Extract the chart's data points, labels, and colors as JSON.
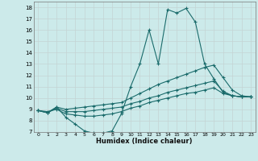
{
  "xlabel": "Humidex (Indice chaleur)",
  "ylabel": "",
  "bg_color": "#cceaea",
  "grid_color": "#aad4d4",
  "line_color": "#1a6b6b",
  "xlim": [
    -0.5,
    23.5
  ],
  "ylim": [
    7,
    18.5
  ],
  "xticks": [
    0,
    1,
    2,
    3,
    4,
    5,
    6,
    7,
    8,
    9,
    10,
    11,
    12,
    13,
    14,
    15,
    16,
    17,
    18,
    19,
    20,
    21,
    22,
    23
  ],
  "yticks": [
    7,
    8,
    9,
    10,
    11,
    12,
    13,
    14,
    15,
    16,
    17,
    18
  ],
  "line1_x": [
    0,
    1,
    2,
    3,
    4,
    5,
    6,
    7,
    8,
    9,
    10,
    11,
    12,
    13,
    14,
    15,
    16,
    17,
    18,
    19,
    20,
    21,
    22,
    23
  ],
  "line1_y": [
    8.9,
    8.7,
    9.2,
    8.3,
    7.7,
    7.1,
    6.9,
    6.9,
    7.1,
    8.6,
    11.0,
    13.0,
    16.0,
    13.0,
    17.8,
    17.5,
    17.9,
    16.7,
    13.0,
    11.7,
    10.5,
    10.2,
    10.1,
    10.1
  ],
  "line2_x": [
    0,
    1,
    2,
    3,
    4,
    5,
    6,
    7,
    8,
    9,
    10,
    11,
    12,
    13,
    14,
    15,
    16,
    17,
    18,
    19,
    20,
    21,
    22,
    23
  ],
  "line2_y": [
    8.9,
    8.7,
    9.2,
    9.0,
    9.1,
    9.2,
    9.3,
    9.4,
    9.5,
    9.6,
    10.0,
    10.4,
    10.8,
    11.2,
    11.5,
    11.8,
    12.1,
    12.4,
    12.7,
    12.9,
    11.8,
    10.7,
    10.2,
    10.1
  ],
  "line3_x": [
    0,
    1,
    2,
    3,
    4,
    5,
    6,
    7,
    8,
    9,
    10,
    11,
    12,
    13,
    14,
    15,
    16,
    17,
    18,
    19,
    20,
    21,
    22,
    23
  ],
  "line3_y": [
    8.9,
    8.7,
    9.1,
    8.8,
    8.8,
    8.8,
    8.9,
    9.0,
    9.1,
    9.2,
    9.5,
    9.7,
    10.0,
    10.2,
    10.5,
    10.7,
    10.9,
    11.1,
    11.3,
    11.5,
    10.6,
    10.2,
    10.1,
    10.1
  ],
  "line4_x": [
    0,
    1,
    2,
    3,
    4,
    5,
    6,
    7,
    8,
    9,
    10,
    11,
    12,
    13,
    14,
    15,
    16,
    17,
    18,
    19,
    20,
    21,
    22,
    23
  ],
  "line4_y": [
    8.9,
    8.8,
    9.0,
    8.6,
    8.5,
    8.4,
    8.4,
    8.5,
    8.6,
    8.8,
    9.1,
    9.3,
    9.6,
    9.8,
    10.0,
    10.2,
    10.4,
    10.5,
    10.7,
    10.9,
    10.4,
    10.2,
    10.1,
    10.1
  ]
}
